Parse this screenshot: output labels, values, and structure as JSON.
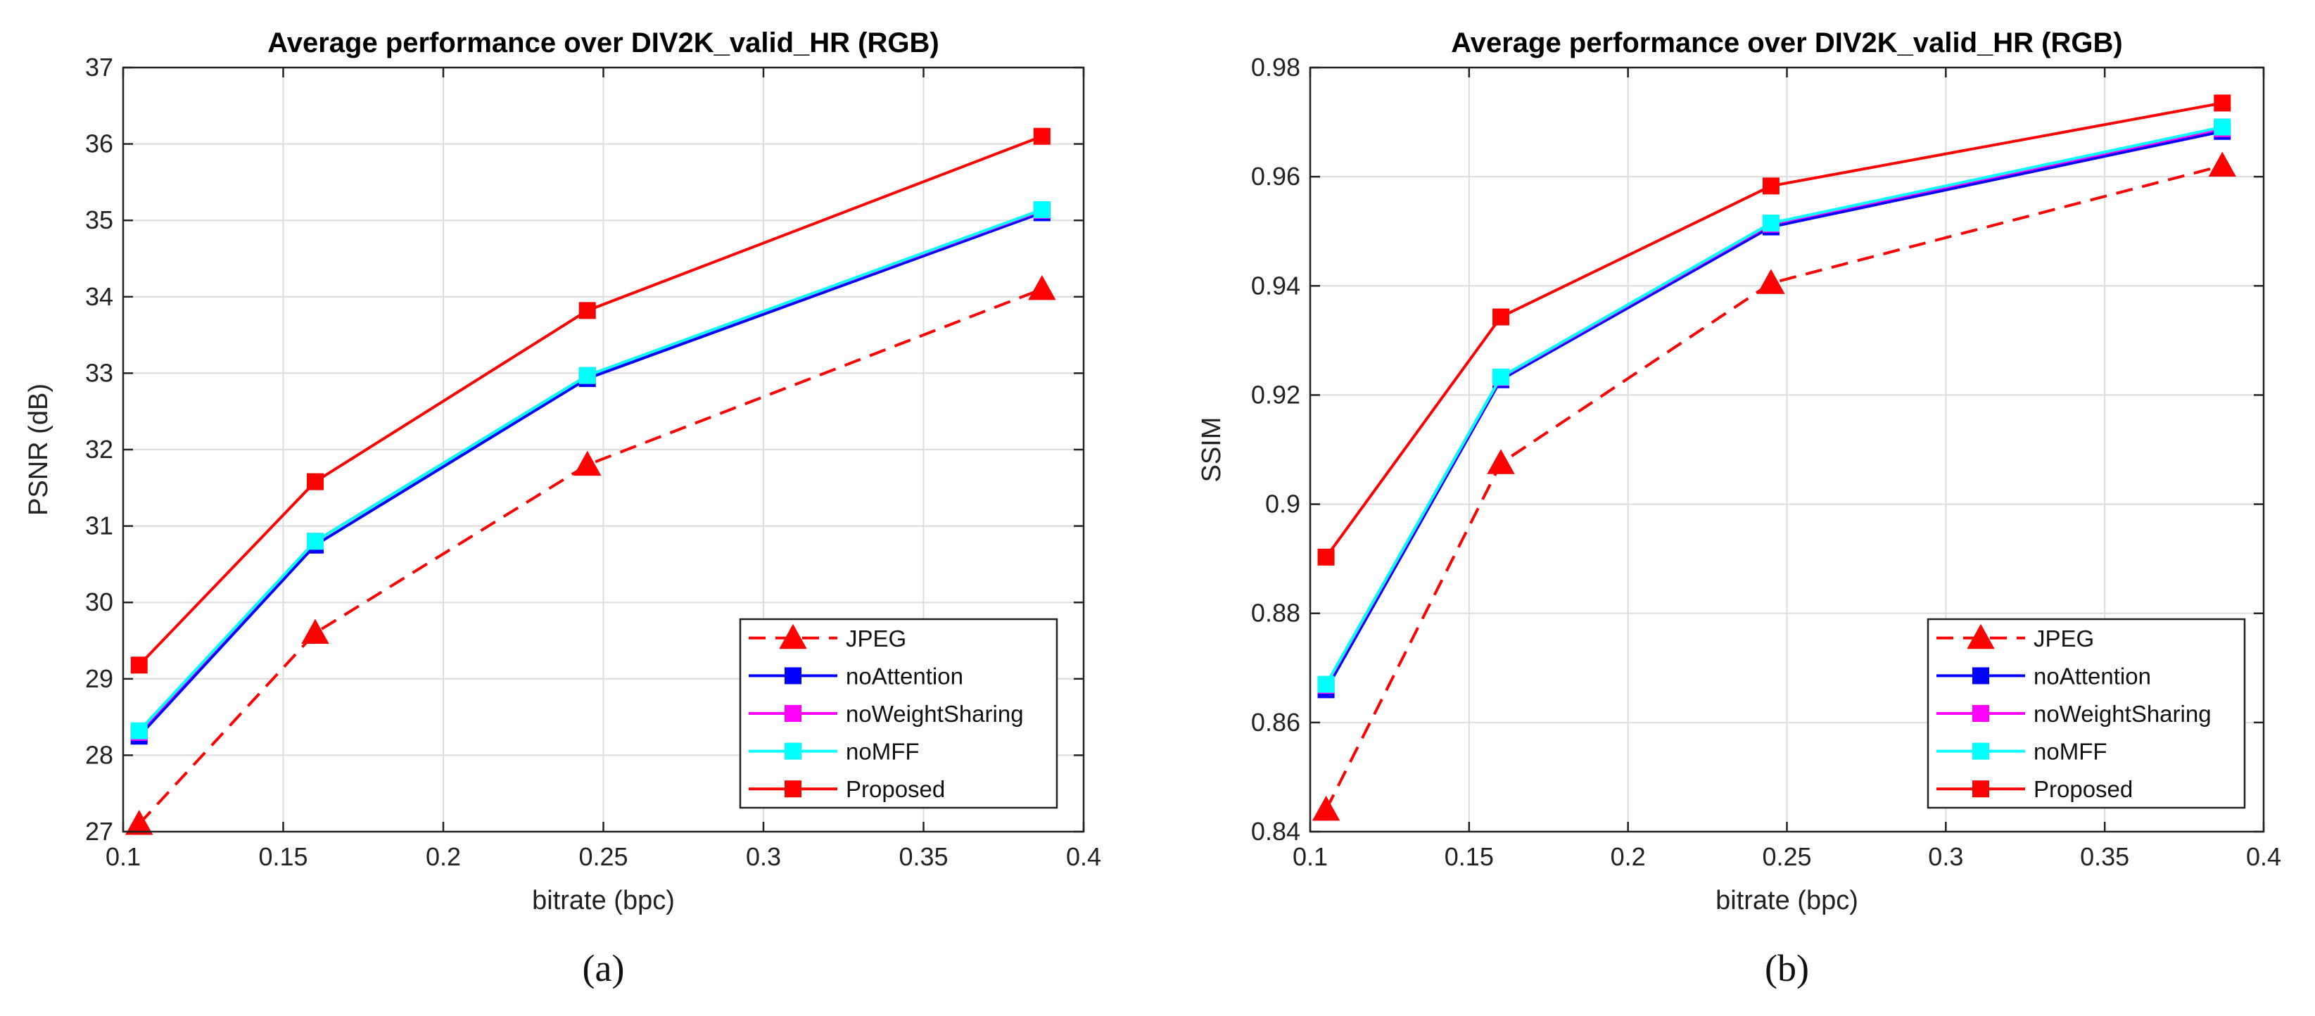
{
  "chart_data": [
    {
      "type": "line",
      "title": "Average performance over DIV2K_valid_HR (RGB)",
      "xlabel": "bitrate (bpc)",
      "ylabel": "PSNR (dB)",
      "caption": "(a)",
      "xlim": [
        0.1,
        0.4
      ],
      "ylim": [
        27,
        37
      ],
      "xticks": [
        0.1,
        0.15,
        0.2,
        0.25,
        0.3,
        0.35,
        0.4
      ],
      "yticks": [
        27,
        28,
        29,
        30,
        31,
        32,
        33,
        34,
        35,
        36,
        37
      ],
      "xtick_labels": [
        "0.1",
        "0.15",
        "0.2",
        "0.25",
        "0.3",
        "0.35",
        "0.4"
      ],
      "ytick_labels": [
        "27",
        "28",
        "29",
        "30",
        "31",
        "32",
        "33",
        "34",
        "35",
        "36",
        "37"
      ],
      "grid": true,
      "legend_position": "bottom-right",
      "x": [
        0.105,
        0.16,
        0.245,
        0.387
      ],
      "series": [
        {
          "name": "JPEG",
          "color": "#ff0000",
          "style": "dashed",
          "marker": "triangle",
          "values": [
            27.1,
            29.6,
            31.8,
            34.1
          ]
        },
        {
          "name": "noAttention",
          "color": "#0000ff",
          "style": "solid",
          "marker": "square",
          "values": [
            28.25,
            30.75,
            32.93,
            35.1
          ]
        },
        {
          "name": "noWeightSharing",
          "color": "#ff00ff",
          "style": "solid",
          "marker": "square",
          "values": [
            28.3,
            30.8,
            32.97,
            35.13
          ]
        },
        {
          "name": "noMFF",
          "color": "#00ffff",
          "style": "solid",
          "marker": "square",
          "values": [
            28.32,
            30.8,
            32.97,
            35.14
          ]
        },
        {
          "name": "Proposed",
          "color": "#ff0000",
          "style": "solid",
          "marker": "square",
          "values": [
            29.18,
            31.58,
            33.82,
            36.1
          ]
        }
      ]
    },
    {
      "type": "line",
      "title": "Average performance over DIV2K_valid_HR (RGB)",
      "xlabel": "bitrate (bpc)",
      "ylabel": "SSIM",
      "caption": "(b)",
      "xlim": [
        0.1,
        0.4
      ],
      "ylim": [
        0.84,
        0.98
      ],
      "xticks": [
        0.1,
        0.15,
        0.2,
        0.25,
        0.3,
        0.35,
        0.4
      ],
      "yticks": [
        0.84,
        0.86,
        0.88,
        0.9,
        0.92,
        0.94,
        0.96,
        0.98
      ],
      "xtick_labels": [
        "0.1",
        "0.15",
        "0.2",
        "0.25",
        "0.3",
        "0.35",
        "0.4"
      ],
      "ytick_labels": [
        "0.84",
        "0.86",
        "0.88",
        "0.9",
        "0.92",
        "0.94",
        "0.96",
        "0.98"
      ],
      "grid": true,
      "legend_position": "bottom-right",
      "x": [
        0.105,
        0.16,
        0.245,
        0.387
      ],
      "series": [
        {
          "name": "JPEG",
          "color": "#ff0000",
          "style": "dashed",
          "marker": "triangle",
          "values": [
            0.844,
            0.9075,
            0.9405,
            0.962
          ]
        },
        {
          "name": "noAttention",
          "color": "#0000ff",
          "style": "solid",
          "marker": "square",
          "values": [
            0.866,
            0.9228,
            0.9508,
            0.9683
          ]
        },
        {
          "name": "noWeightSharing",
          "color": "#ff00ff",
          "style": "solid",
          "marker": "square",
          "values": [
            0.8668,
            0.9232,
            0.9513,
            0.9688
          ]
        },
        {
          "name": "noMFF",
          "color": "#00ffff",
          "style": "solid",
          "marker": "square",
          "values": [
            0.867,
            0.9233,
            0.9515,
            0.9691
          ]
        },
        {
          "name": "Proposed",
          "color": "#ff0000",
          "style": "solid",
          "marker": "square",
          "values": [
            0.8903,
            0.9343,
            0.9583,
            0.9735
          ]
        }
      ]
    }
  ]
}
